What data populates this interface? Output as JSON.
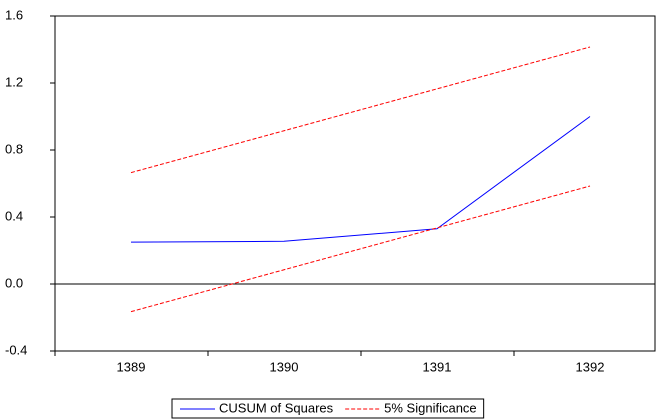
{
  "chart_data": {
    "type": "line",
    "categories": [
      "1389",
      "1390",
      "1391",
      "1392"
    ],
    "series": [
      {
        "name": "CUSUM of Squares",
        "color": "#0000ff",
        "values": [
          0.25,
          0.255,
          0.33,
          1.0
        ]
      },
      {
        "name": "5% Significance",
        "color": "#ff0000",
        "dashed": true,
        "upper": [
          0.665,
          0.915,
          1.165,
          1.415
        ],
        "lower": [
          -0.165,
          0.085,
          0.335,
          0.585
        ]
      }
    ],
    "ylim": [
      -0.4,
      1.6
    ],
    "yticks": [
      -0.4,
      {
        "value": 0,
        "label": "0.0"
      },
      0.4,
      0.8,
      1.2,
      1.6
    ],
    "legend": "bottom"
  }
}
